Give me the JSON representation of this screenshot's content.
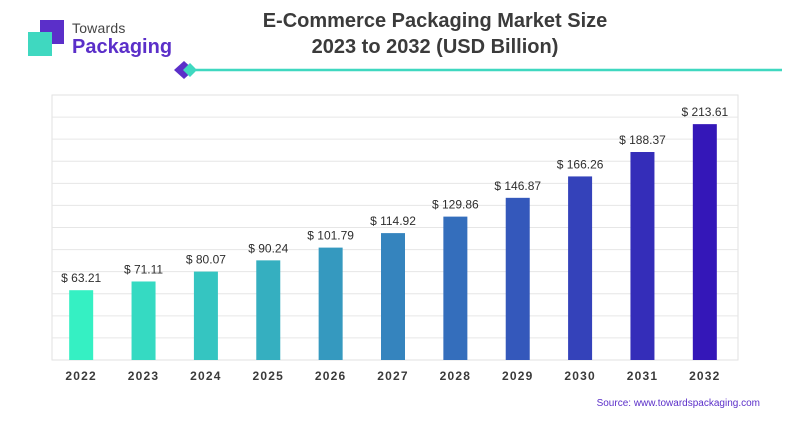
{
  "logo": {
    "top": "Towards",
    "bottom": "Packaging"
  },
  "title_line1": "E-Commerce Packaging Market Size",
  "title_line2": "2023 to 2032 (USD Billion)",
  "source": "Source: www.towardspackaging.com",
  "colors": {
    "start": "#35f0c3",
    "end": "#3417b8",
    "brand": "#5b2fc9",
    "accent": "#3fd8c0"
  },
  "chart_data": {
    "type": "bar",
    "title": "E-Commerce Packaging Market Size 2023 to 2032 (USD Billion)",
    "categories": [
      "2022",
      "2023",
      "2024",
      "2025",
      "2026",
      "2027",
      "2028",
      "2029",
      "2030",
      "2031",
      "2032"
    ],
    "values": [
      63.21,
      71.11,
      80.07,
      90.24,
      101.79,
      114.92,
      129.86,
      146.87,
      166.26,
      188.37,
      213.61
    ],
    "value_labels": [
      "$ 63.21",
      "$ 71.11",
      "$ 80.07",
      "$ 90.24",
      "$ 101.79",
      "$ 114.92",
      "$ 129.86",
      "$ 146.87",
      "$ 166.26",
      "$ 188.37",
      "$ 213.61"
    ],
    "xlabel": "",
    "ylabel": "",
    "ylim": [
      0,
      240
    ],
    "grid": true,
    "legend": "none"
  }
}
